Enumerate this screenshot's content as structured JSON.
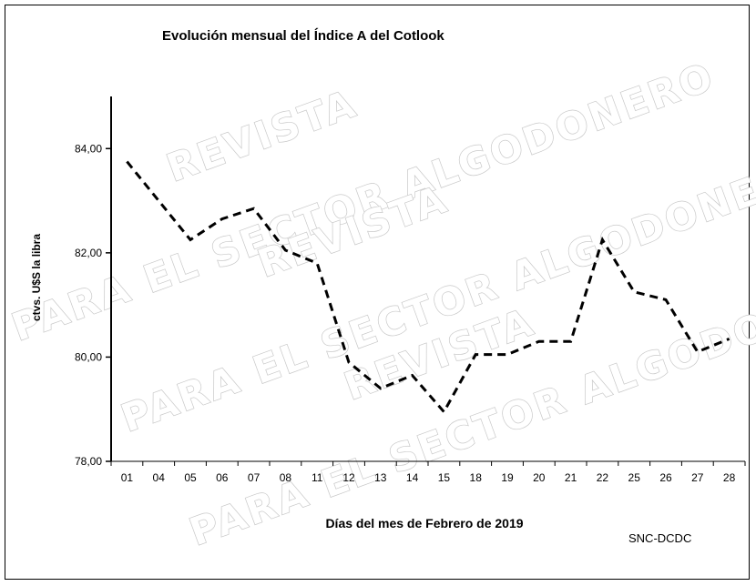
{
  "chart_data": {
    "type": "line",
    "title": "Evolución mensual del Índice A del Cotlook",
    "xlabel": "Días del mes de Febrero de 2019",
    "ylabel": "ctvs. U$S la libra",
    "ylim": [
      78,
      85
    ],
    "yticks": [
      "78,00",
      "80,00",
      "82,00",
      "84,00"
    ],
    "ytick_values": [
      78,
      80,
      82,
      84
    ],
    "categories": [
      "01",
      "04",
      "05",
      "06",
      "07",
      "08",
      "11",
      "12",
      "13",
      "14",
      "15",
      "18",
      "19",
      "20",
      "21",
      "22",
      "25",
      "26",
      "27",
      "28"
    ],
    "series": [
      {
        "values": [
          83.75,
          83.0,
          82.25,
          82.65,
          82.85,
          82.05,
          81.8,
          79.9,
          79.4,
          79.65,
          78.95,
          80.05,
          80.05,
          80.3,
          80.3,
          82.25,
          81.25,
          81.1,
          80.1,
          80.35
        ],
        "style": "dashed",
        "color": "#000000"
      }
    ],
    "grid": false,
    "legend": "none"
  },
  "source_note": "SNC-DCDC",
  "watermark": {
    "lines": [
      "REVISTA",
      "PARA EL SECTOR ALGODONERO"
    ],
    "color": "#c8c8c8"
  }
}
